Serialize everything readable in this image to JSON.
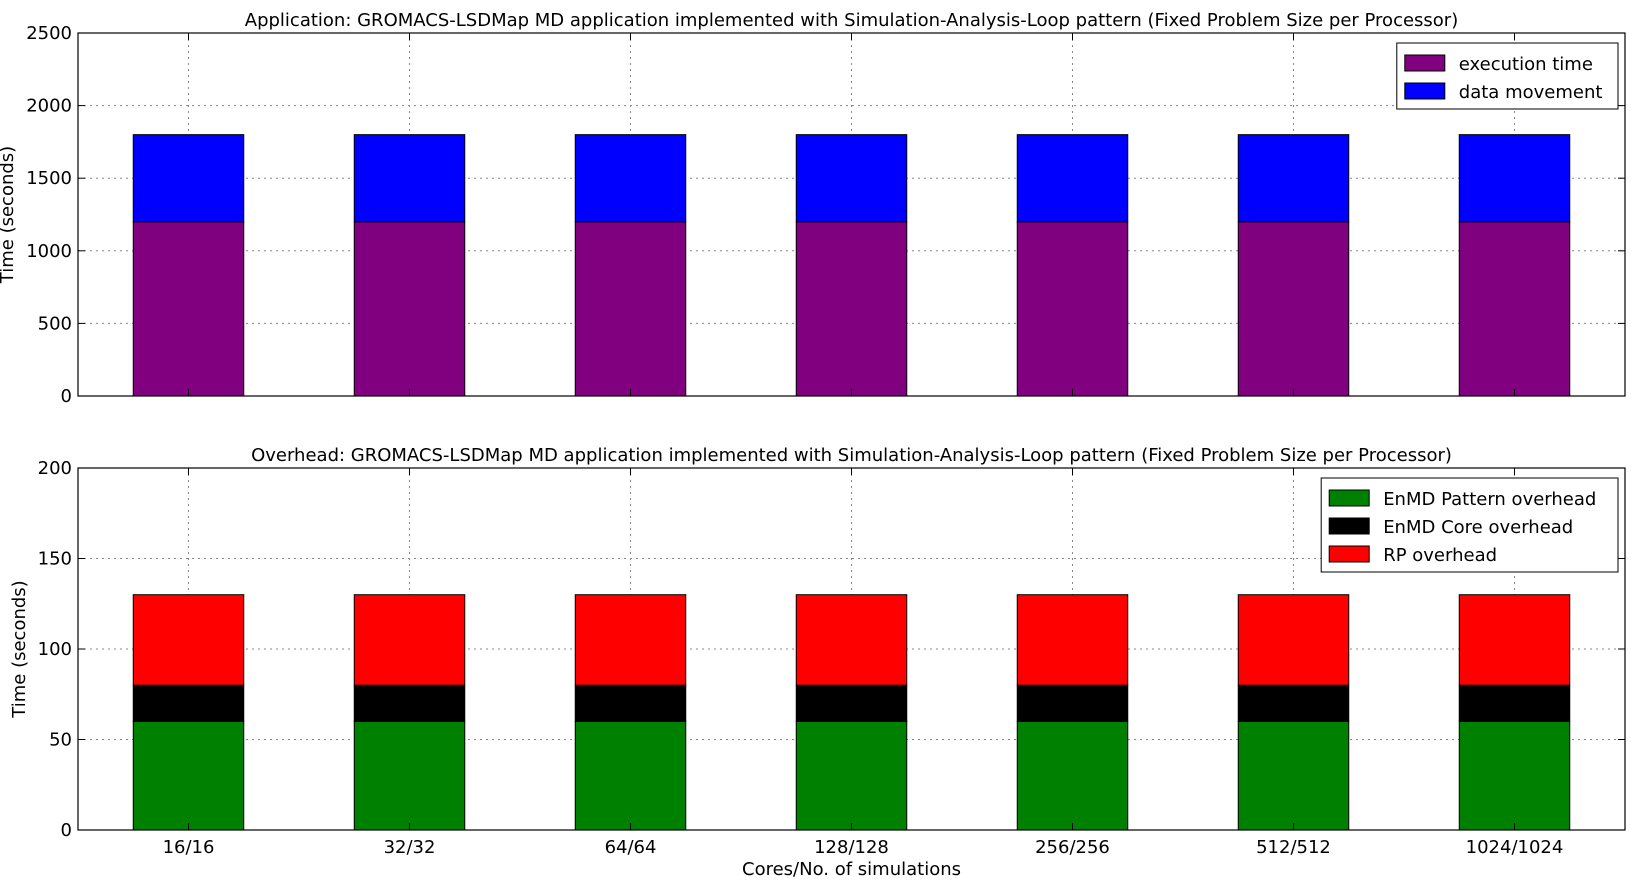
{
  "chart_data": [
    {
      "type": "bar",
      "stacked": true,
      "title": "Application: GROMACS-LSDMap MD application implemented with Simulation-Analysis-Loop pattern (Fixed Problem Size per Processor)",
      "xlabel": "",
      "ylabel": "Time (seconds)",
      "categories": [
        "16/16",
        "32/32",
        "64/64",
        "128/128",
        "256/256",
        "512/512",
        "1024/1024"
      ],
      "ylim": [
        0,
        2500
      ],
      "yticks": [
        0,
        500,
        1000,
        1500,
        2000,
        2500
      ],
      "grid": true,
      "legend_position": "top-right",
      "series": [
        {
          "name": "execution time",
          "color": "#800080",
          "values": [
            1200,
            1200,
            1200,
            1200,
            1200,
            1200,
            1200
          ]
        },
        {
          "name": "data movement",
          "color": "#0000ff",
          "values": [
            600,
            600,
            600,
            600,
            600,
            600,
            600
          ]
        }
      ]
    },
    {
      "type": "bar",
      "stacked": true,
      "title": "Overhead: GROMACS-LSDMap MD application implemented with Simulation-Analysis-Loop pattern (Fixed Problem Size per Processor)",
      "xlabel": "Cores/No. of simulations",
      "ylabel": "Time (seconds)",
      "categories": [
        "16/16",
        "32/32",
        "64/64",
        "128/128",
        "256/256",
        "512/512",
        "1024/1024"
      ],
      "ylim": [
        0,
        200
      ],
      "yticks": [
        0,
        50,
        100,
        150,
        200
      ],
      "grid": true,
      "legend_position": "top-right",
      "series": [
        {
          "name": "EnMD Pattern overhead",
          "color": "#008000",
          "values": [
            60,
            60,
            60,
            60,
            60,
            60,
            60
          ]
        },
        {
          "name": "EnMD Core overhead",
          "color": "#000000",
          "values": [
            20,
            20,
            20,
            20,
            20,
            20,
            20
          ]
        },
        {
          "name": "RP overhead",
          "color": "#ff0000",
          "values": [
            50,
            50,
            50,
            50,
            50,
            50,
            50
          ]
        }
      ]
    }
  ]
}
